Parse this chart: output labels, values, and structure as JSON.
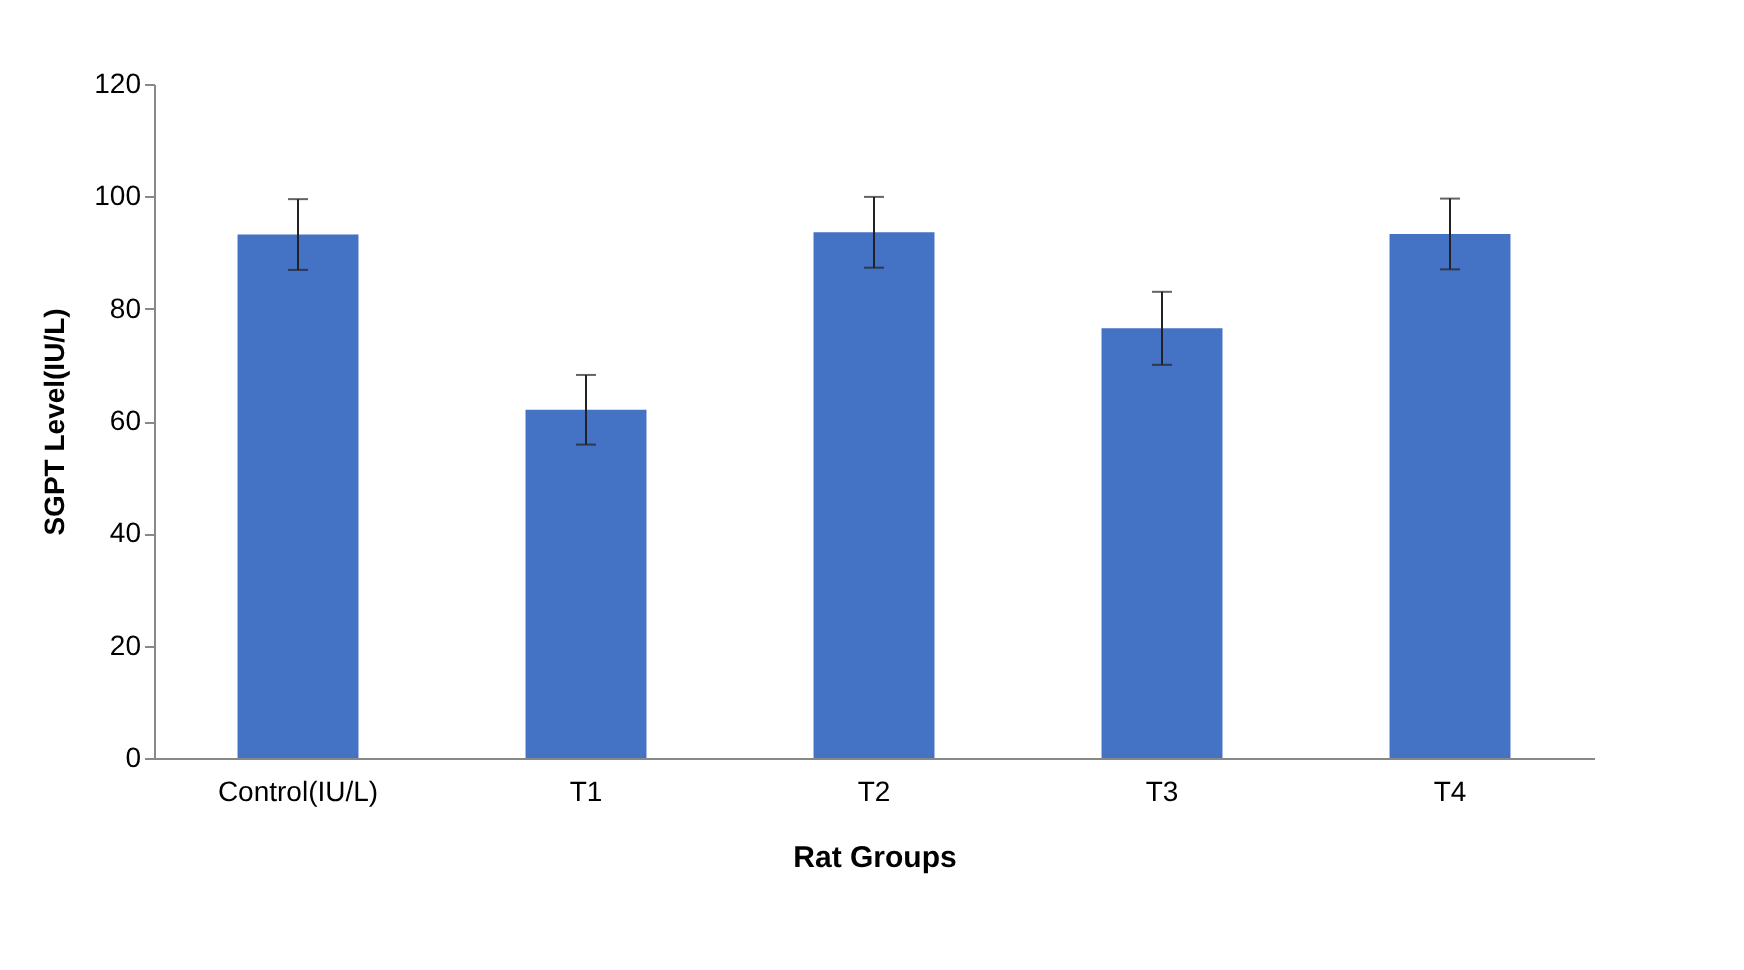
{
  "chart_data": {
    "type": "bar",
    "xlabel": "Rat Groups",
    "ylabel": "SGPT Level(IU/L)",
    "categories": [
      "Control(IU/L)",
      "T1",
      "T2",
      "T3",
      "T4"
    ],
    "values": [
      93.2,
      62,
      93.6,
      76.5,
      93.3
    ],
    "errors": [
      6.3,
      6.2,
      6.3,
      6.5,
      6.3
    ],
    "color": "#4472c4",
    "ylim": [
      0,
      120
    ],
    "yticks": [
      0,
      20,
      40,
      60,
      80,
      100,
      120
    ],
    "grid": false
  }
}
